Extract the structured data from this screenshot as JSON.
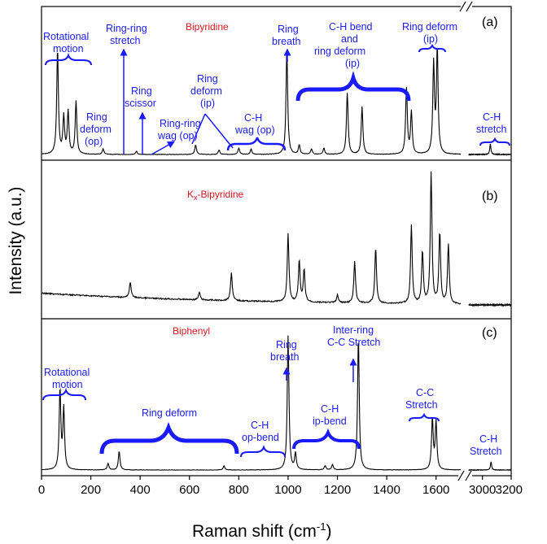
{
  "chart_data": {
    "type": "line",
    "xlabel": "Raman shift (cm",
    "xlabel_sup": "-1",
    "xlabel_end": ")",
    "ylabel": "Intensity (a.u.)",
    "x_ticks": [
      "0",
      "200",
      "400",
      "600",
      "800",
      "1000",
      "1200",
      "1400",
      "1600",
      "3000",
      "3200"
    ],
    "x_ranges": [
      [
        0,
        1700
      ],
      [
        2900,
        3200
      ]
    ],
    "panels": [
      {
        "tag": "(a)",
        "label": "Bipyridine",
        "peaks": [
          [
            65,
            1.0
          ],
          [
            90,
            0.35
          ],
          [
            108,
            0.4
          ],
          [
            140,
            0.5
          ],
          [
            250,
            0.05
          ],
          [
            385,
            0.03
          ],
          [
            625,
            0.09
          ],
          [
            720,
            0.04
          ],
          [
            800,
            0.06
          ],
          [
            850,
            0.05
          ],
          [
            995,
            1.0
          ],
          [
            1045,
            0.09
          ],
          [
            1095,
            0.05
          ],
          [
            1145,
            0.06
          ],
          [
            1240,
            0.58
          ],
          [
            1300,
            0.45
          ],
          [
            1480,
            0.62
          ],
          [
            1500,
            0.4
          ],
          [
            1590,
            0.85
          ],
          [
            1605,
            1.0
          ],
          [
            3055,
            0.1
          ]
        ],
        "annotations": {
          "rotational": "Rotational motion",
          "ring_deform_op": "Ring deform (op)",
          "ring_ring_stretch": "Ring-ring stretch",
          "ring_scissor": "Ring scissor",
          "ring_ring_wag": "Ring-ring wag (op)",
          "ring_deform_ip": "Ring deform (ip)",
          "ch_wag": "C-H wag (op)",
          "ring_breath": "Ring breath",
          "ch_bend": "C-H bend and ring deform (ip)",
          "ring_deform_ip2": "Ring deform (ip)",
          "ch_stretch": "C-H stretch"
        }
      },
      {
        "tag": "(b)",
        "label": "K",
        "label_sub": "x",
        "label_end": "-Bipyridine",
        "peaks": [
          [
            360,
            0.12
          ],
          [
            640,
            0.06
          ],
          [
            770,
            0.22
          ],
          [
            1000,
            0.52
          ],
          [
            1045,
            0.32
          ],
          [
            1065,
            0.25
          ],
          [
            1200,
            0.06
          ],
          [
            1270,
            0.32
          ],
          [
            1355,
            0.43
          ],
          [
            1500,
            0.6
          ],
          [
            1545,
            0.4
          ],
          [
            1580,
            1.0
          ],
          [
            1615,
            0.55
          ],
          [
            1650,
            0.45
          ]
        ]
      },
      {
        "tag": "(c)",
        "label": "Biphenyl",
        "peaks": [
          [
            75,
            0.6
          ],
          [
            90,
            0.45
          ],
          [
            270,
            0.05
          ],
          [
            315,
            0.14
          ],
          [
            740,
            0.03
          ],
          [
            1000,
            1.0
          ],
          [
            1030,
            0.12
          ],
          [
            1150,
            0.03
          ],
          [
            1180,
            0.04
          ],
          [
            1285,
            1.0
          ],
          [
            1585,
            0.38
          ],
          [
            1600,
            0.36
          ],
          [
            3060,
            0.06
          ]
        ],
        "annotations": {
          "rotational": "Rotational motion",
          "ring_deform": "Ring deform",
          "ch_opbend": "C-H op-bend",
          "ring_breath": "Ring breath",
          "ch_ipbend": "C-H ip-bend",
          "interring": "Inter-ring C-C Stretch",
          "cc_stretch": "C-C Stretch",
          "ch_stretch": "C-H Stretch"
        }
      }
    ],
    "colors": {
      "line": "#000000",
      "annotation": "#1a1aff",
      "label": "#e0141e"
    },
    "grid": false
  }
}
